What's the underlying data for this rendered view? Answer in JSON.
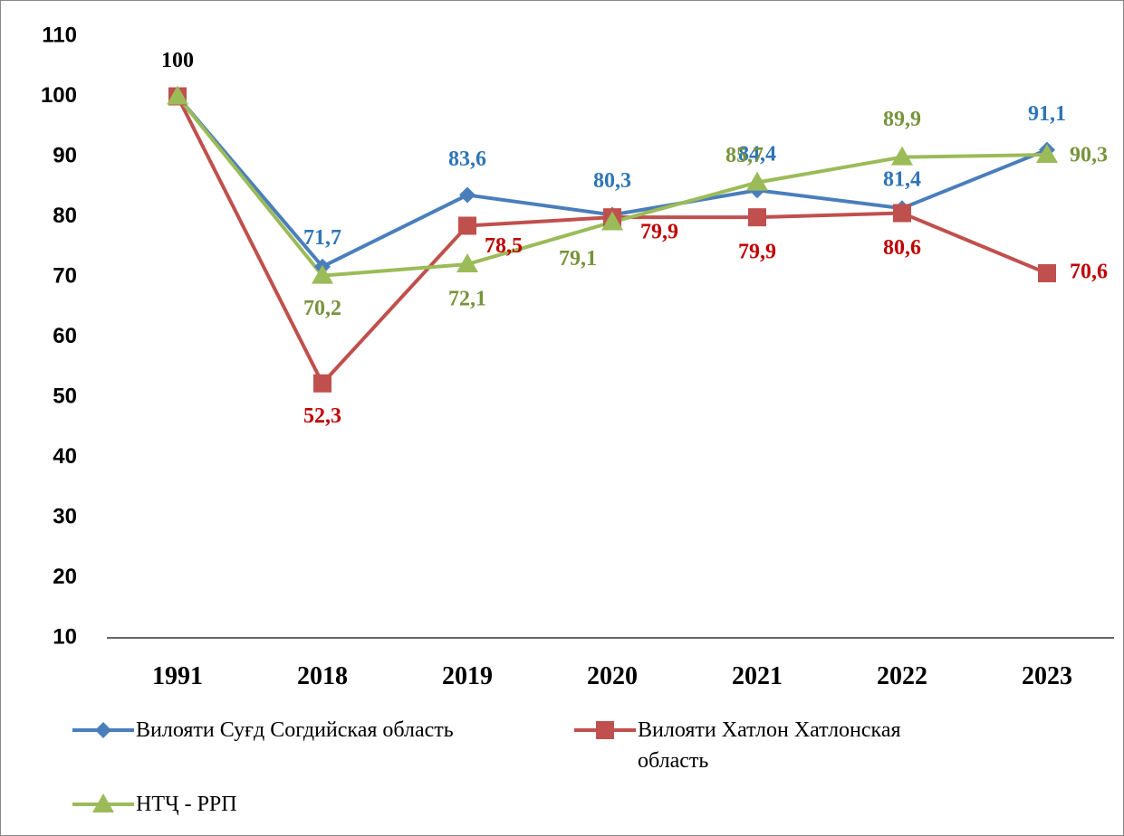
{
  "chart_data": {
    "type": "line",
    "categories": [
      "1991",
      "2018",
      "2019",
      "2020",
      "2021",
      "2022",
      "2023"
    ],
    "series": [
      {
        "name": "Вилояти Суғд Согдийская область",
        "color": "#4a7ebb",
        "marker": "diamond",
        "label_color": "#2e75b6",
        "values": [
          100,
          71.7,
          83.6,
          80.3,
          84.4,
          81.4,
          91.1
        ],
        "value_labels": [
          "100",
          "71,7",
          "83,6",
          "80,3",
          "84,4",
          "81,4",
          "91,1"
        ]
      },
      {
        "name": "Вилояти Хатлон Хатлонская область",
        "color": "#c0504d",
        "marker": "square",
        "label_color": "#c00000",
        "values": [
          100,
          52.3,
          78.5,
          79.9,
          79.9,
          80.6,
          70.6
        ],
        "value_labels": [
          null,
          "52,3",
          "78,5",
          "79,9",
          "79,9",
          "80,6",
          "70,6"
        ]
      },
      {
        "name": "НТҶ - РРП",
        "color": "#9bbb59",
        "marker": "triangle",
        "label_color": "#77933c",
        "values": [
          100,
          70.2,
          72.1,
          79.1,
          85.7,
          89.9,
          90.3
        ],
        "value_labels": [
          null,
          "70,2",
          "72,1",
          "79,1",
          "85,7",
          "89,9",
          "90,3"
        ]
      }
    ],
    "ylim": [
      10,
      110
    ],
    "yticks": [
      10,
      20,
      30,
      40,
      50,
      60,
      70,
      80,
      90,
      100,
      110
    ],
    "grid": false,
    "legend": "bottom"
  }
}
